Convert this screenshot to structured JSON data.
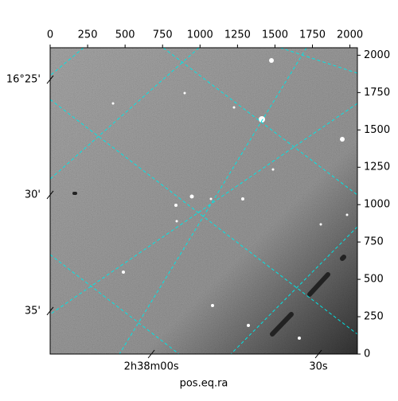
{
  "chart_data": {
    "type": "image",
    "xlabel": "pos.eq.ra",
    "xlim": [
      0,
      2050
    ],
    "ylim": [
      0,
      2050
    ],
    "xticks": [
      0,
      250,
      500,
      750,
      1000,
      1250,
      1500,
      1750,
      2000
    ],
    "yticks": [
      0,
      250,
      500,
      750,
      1000,
      1250,
      1500,
      1750,
      2000
    ],
    "ra_ticks": [
      {
        "value": 675,
        "label": "2h38m00s"
      },
      {
        "value": 1790,
        "label": "30s"
      }
    ],
    "dec_ticks": [
      {
        "value": 1837,
        "label": "16°25'"
      },
      {
        "value": 1065,
        "label": "30'"
      },
      {
        "value": 288,
        "label": "35'"
      }
    ],
    "grid_color": "#00e5e5"
  }
}
